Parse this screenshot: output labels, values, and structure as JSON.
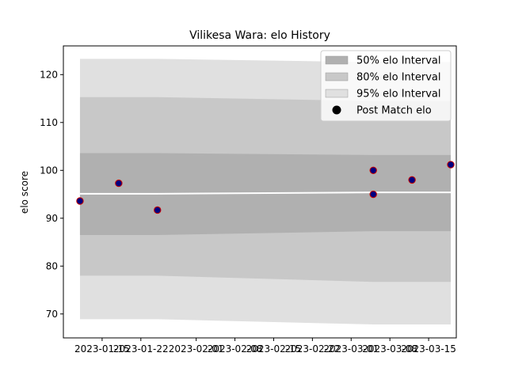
{
  "chart_data": {
    "type": "line",
    "title": "Vilikesa Wara: elo History",
    "xlabel": "",
    "ylabel": "elo score",
    "x_range": [
      "2023-01-08",
      "2023-03-20"
    ],
    "ylim": [
      65,
      126
    ],
    "x_ticks": [
      "2023-01-15",
      "2023-01-22",
      "2023-02-01",
      "2023-02-08",
      "2023-02-15",
      "2023-02-22",
      "2023-03-01",
      "2023-03-08",
      "2023-03-15"
    ],
    "y_ticks": [
      70,
      80,
      90,
      100,
      110,
      120
    ],
    "grid": false,
    "legend_position": "top-right",
    "legend": [
      {
        "label": "50% elo Interval",
        "kind": "patch",
        "color": "#b0b0b0"
      },
      {
        "label": "80% elo Interval",
        "kind": "patch",
        "color": "#c8c8c8"
      },
      {
        "label": "95% elo Interval",
        "kind": "patch",
        "color": "#e0e0e0"
      },
      {
        "label": "Post Match elo",
        "kind": "marker",
        "color": "#000000"
      }
    ],
    "bands": {
      "x": [
        "2023-01-11",
        "2023-01-18",
        "2023-01-25",
        "2023-03-05",
        "2023-03-05",
        "2023-03-12",
        "2023-03-19"
      ],
      "mean": [
        95.1,
        95.1,
        95.1,
        95.4,
        95.4,
        95.4,
        95.4
      ],
      "p50_low": [
        86.5,
        86.5,
        86.5,
        87.3,
        87.3,
        87.3,
        87.3
      ],
      "p50_high": [
        103.6,
        103.6,
        103.6,
        103.2,
        103.2,
        103.2,
        103.2
      ],
      "p80_low": [
        78.0,
        78.0,
        78.0,
        76.7,
        76.7,
        76.7,
        76.7
      ],
      "p80_high": [
        115.3,
        115.3,
        115.3,
        114.5,
        114.5,
        114.5,
        114.5
      ],
      "p95_low": [
        68.9,
        68.9,
        68.9,
        67.8,
        67.8,
        67.8,
        67.8
      ],
      "p95_high": [
        123.3,
        123.3,
        123.3,
        122.6,
        122.6,
        122.6,
        122.6
      ]
    },
    "series": [
      {
        "name": "Post Match elo",
        "x": [
          "2023-01-11",
          "2023-01-18",
          "2023-01-25",
          "2023-03-05",
          "2023-03-05",
          "2023-03-12",
          "2023-03-19"
        ],
        "y": [
          93.6,
          97.3,
          91.7,
          100.0,
          95.0,
          98.0,
          101.2
        ],
        "marker_fill": "#000080",
        "marker_edge": "#cc0000"
      }
    ],
    "colors": {
      "band_50": "#b0b0b0",
      "band_80": "#c8c8c8",
      "band_95": "#e0e0e0",
      "mean_line": "#ffffff"
    }
  }
}
